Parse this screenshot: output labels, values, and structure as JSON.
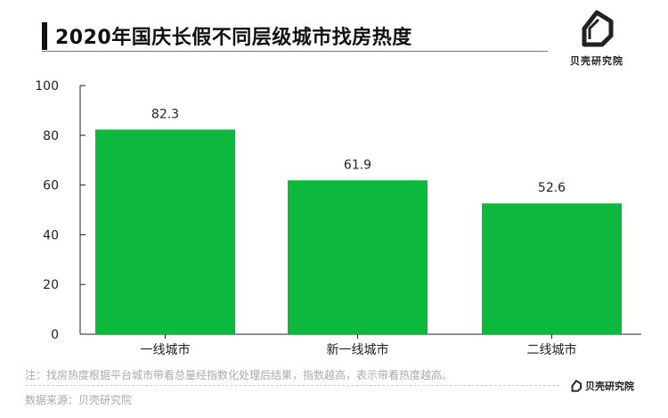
{
  "brand": "贝壳研究院",
  "chart_data": {
    "type": "bar",
    "title": "2020年国庆长假不同层级城市找房热度",
    "categories": [
      "一线城市",
      "新一线城市",
      "二线城市"
    ],
    "values": [
      82.3,
      61.9,
      52.6
    ],
    "value_labels": [
      "82.3",
      "61.9",
      "52.6"
    ],
    "ylim": [
      0,
      100
    ],
    "yticks": [
      "0",
      "20",
      "40",
      "60",
      "80",
      "100"
    ],
    "bar_color": "#0cb93d",
    "grid": false
  },
  "note": "注：找房热度根据平台城市带看总量经指数化处理后结果，指数越高，表示带看热度越高。",
  "source": "数据来源：贝壳研究院"
}
